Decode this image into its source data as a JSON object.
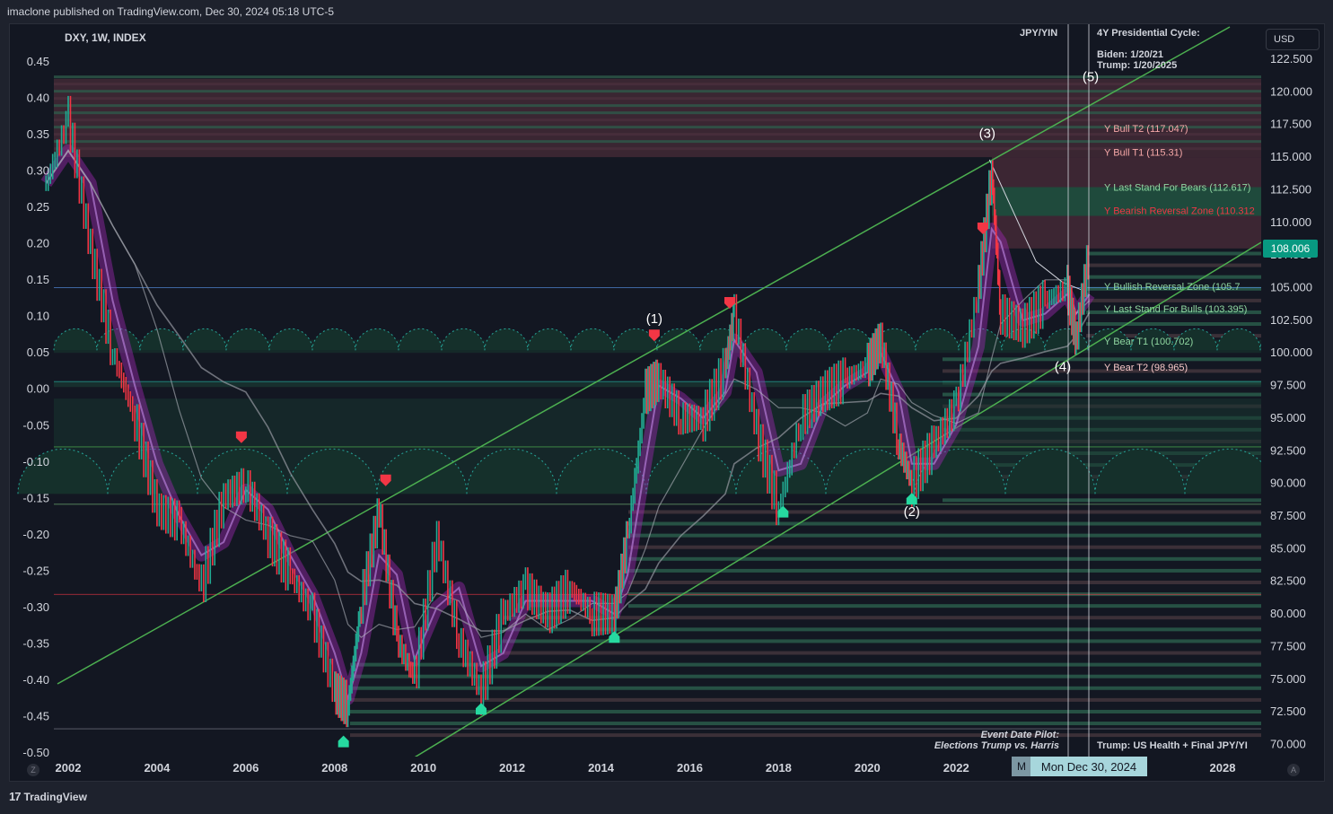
{
  "header": {
    "publisher": "imaclone published on TradingView.com, Dec 30, 2024 05:18 UTC-5"
  },
  "symbol": {
    "label": "DXY, 1W, INDEX"
  },
  "currency": {
    "label": "USD"
  },
  "price_tag": {
    "label": "108.006"
  },
  "date_tag": {
    "label": "Mon Dec 30, 2024",
    "prefix": "M"
  },
  "corner_left": {
    "label": "Z"
  },
  "corner_right": {
    "label": "A"
  },
  "footer": {
    "brand": "TradingView",
    "logo": "17"
  },
  "annotations": {
    "jpy_yin": "JPY/YIN",
    "cycle_title": "4Y Presidential Cycle:",
    "biden": "Biden: 1/20/21",
    "trump": "Trump: 1/20/2025",
    "event_pilot": "Event Date Pilot:",
    "elections": "Elections Trump vs. Harris",
    "trump_health": "Trump: US Health + Final JPY/YI"
  },
  "wave_labels": [
    "(1)",
    "(2)",
    "(3)",
    "(4)",
    "(5)"
  ],
  "level_labels": [
    {
      "text": "Y Bull T2 (117.047)",
      "color": "#f7a8a8"
    },
    {
      "text": "Y Bull T1 (115.31)",
      "color": "#f7a8a8"
    },
    {
      "text": "Y Last Stand For Bears (112.617)",
      "color": "#8fd6a0"
    },
    {
      "text": "Y Bearish Reversal Zone (110.312",
      "color": "#f23645"
    },
    {
      "text": "Y Bullish Reversal Zone (105.7",
      "color": "#8fd6a0"
    },
    {
      "text": "Y Last Stand For Bulls (103.395)",
      "color": "#8fd6a0"
    },
    {
      "text": "Y Bear T1 (100.702)",
      "color": "#8fd6a0"
    },
    {
      "text": "Y Bear T2 (98.965)",
      "color": "#f7c8c8"
    }
  ],
  "colors": {
    "bull": "#22ab94",
    "bear": "#f23645",
    "trend": "#4caf50",
    "ribbon": "#9c27b0",
    "accent": "#089981"
  },
  "chart_data": {
    "type": "line",
    "title": "DXY, 1W, INDEX",
    "x_ticks": [
      "2002",
      "2004",
      "2006",
      "2008",
      "2010",
      "2012",
      "2014",
      "2016",
      "2018",
      "2020",
      "2022",
      "2028"
    ],
    "right_axis": {
      "label": "USD",
      "ticks": [
        "122.500",
        "120.000",
        "117.500",
        "115.000",
        "112.500",
        "110.000",
        "107.500",
        "105.000",
        "102.500",
        "100.000",
        "97.500",
        "95.000",
        "92.500",
        "90.000",
        "87.500",
        "85.000",
        "82.500",
        "80.000",
        "77.500",
        "75.000",
        "72.500",
        "70.000"
      ],
      "ylim": [
        70,
        124
      ]
    },
    "left_axis": {
      "ticks": [
        "0.45",
        "0.40",
        "0.35",
        "0.30",
        "0.25",
        "0.20",
        "0.15",
        "0.10",
        "0.05",
        "0.00",
        "-0.05",
        "-0.10",
        "-0.15",
        "-0.20",
        "-0.25",
        "-0.30",
        "-0.35",
        "-0.40",
        "-0.45",
        "-0.50"
      ]
    },
    "series": [
      {
        "x": [
          2001.5,
          2002.0,
          2002.5,
          2003.0,
          2003.5,
          2004.0,
          2004.5,
          2005.0,
          2005.5,
          2006.0,
          2006.5,
          2007.0,
          2007.5,
          2008.0,
          2008.3,
          2008.6,
          2009.0,
          2009.4,
          2009.8,
          2010.3,
          2010.8,
          2011.3,
          2011.8,
          2012.3,
          2012.8,
          2013.3,
          2013.8,
          2014.3,
          2014.6,
          2015.0,
          2015.3,
          2015.8,
          2016.3,
          2016.8,
          2017.0,
          2017.5,
          2018.0,
          2018.5,
          2019.0,
          2019.5,
          2020.0,
          2020.3,
          2020.7,
          2021.0,
          2021.5,
          2022.0,
          2022.5,
          2022.8,
          2023.0,
          2023.5,
          2024.0,
          2024.5,
          2024.7,
          2025.0
        ],
        "values": [
          113,
          118,
          108,
          100,
          95,
          88,
          87,
          82,
          89,
          90,
          86,
          83,
          80,
          74,
          73,
          81,
          88,
          78,
          75,
          86,
          78,
          74,
          80,
          82,
          80,
          82,
          80,
          80,
          86,
          97,
          98,
          95,
          95,
          99,
          103,
          94,
          88,
          95,
          97,
          98,
          99,
          101,
          93,
          90,
          93,
          96,
          105,
          114,
          103,
          102,
          104,
          105,
          101,
          108
        ]
      }
    ]
  }
}
